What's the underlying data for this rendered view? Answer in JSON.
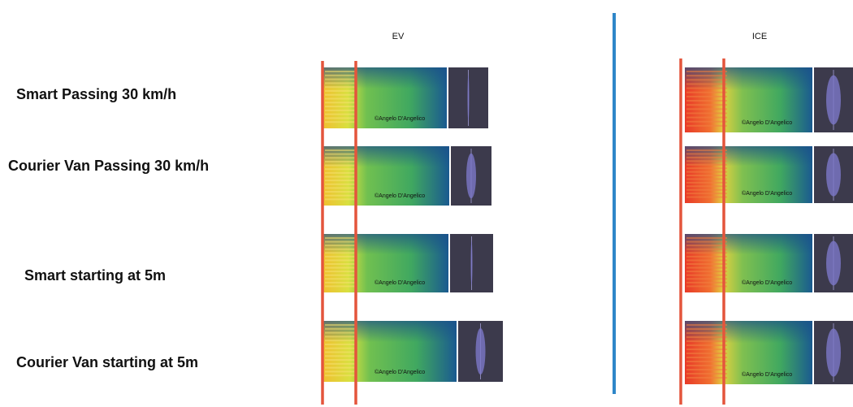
{
  "columns": [
    {
      "title": "EV"
    },
    {
      "title": "ICE"
    }
  ],
  "rows": [
    {
      "label": "Smart Passing 30 km/h"
    },
    {
      "label": "Courier Van Passing 30 km/h"
    },
    {
      "label": "Smart starting at 5m"
    },
    {
      "label": "Courier Van starting at 5m"
    }
  ],
  "panels": [
    {
      "column": "EV",
      "watermark": "©Angelo D'Angelico"
    },
    {
      "column": "EV",
      "watermark": "©Angelo D'Angelico"
    },
    {
      "column": "EV",
      "watermark": "©Angelo D'Angelico"
    },
    {
      "column": "EV",
      "watermark": "©Angelo D'Angelico"
    },
    {
      "column": "ICE",
      "watermark": "©Angelo D'Angelico"
    },
    {
      "column": "ICE",
      "watermark": "©Angelo D'Angelico"
    },
    {
      "column": "ICE",
      "watermark": "©Angelo D'Angelico"
    },
    {
      "column": "ICE",
      "watermark": "©Angelo D'Angelico"
    }
  ]
}
